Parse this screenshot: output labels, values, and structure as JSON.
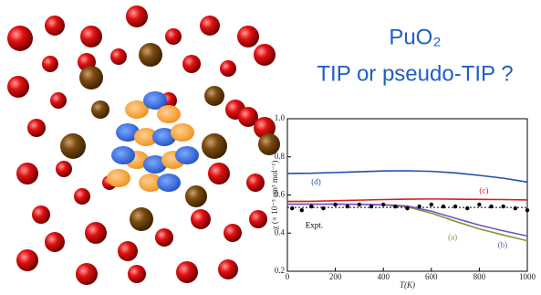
{
  "slide": {
    "title_line1": "PuO₂",
    "title_line2": "TIP or pseudo-TIP ?"
  },
  "chart_data": {
    "type": "line",
    "xlabel": "T(K)",
    "ylabel": "χ (× 10⁻³ cm³ mol⁻¹)",
    "xlim": [
      0,
      1000
    ],
    "xticks": [
      0,
      200,
      400,
      600,
      800,
      1000
    ],
    "ylim": [
      0.2,
      1
    ],
    "yticks": [
      0.2,
      0.4,
      0.6,
      0.8,
      {
        "value": 1,
        "label": "1.0"
      }
    ],
    "series": [
      {
        "name": "(a)",
        "color": "#7a9a3a",
        "x": [
          0,
          100,
          200,
          300,
          400,
          500,
          600,
          700,
          800,
          900,
          1000
        ],
        "values": [
          0.552,
          0.552,
          0.552,
          0.551,
          0.548,
          0.538,
          0.505,
          0.462,
          0.422,
          0.39,
          0.36
        ]
      },
      {
        "name": "(b)",
        "color": "#7b4fc0",
        "x": [
          0,
          100,
          200,
          300,
          400,
          500,
          600,
          700,
          800,
          900,
          1000
        ],
        "values": [
          0.552,
          0.552,
          0.552,
          0.551,
          0.549,
          0.542,
          0.515,
          0.478,
          0.442,
          0.412,
          0.385
        ]
      },
      {
        "name": "(c)",
        "color": "#d42020",
        "x": [
          0,
          100,
          200,
          300,
          400,
          500,
          600,
          700,
          800,
          900,
          1000
        ],
        "values": [
          0.566,
          0.567,
          0.57,
          0.573,
          0.576,
          0.578,
          0.579,
          0.578,
          0.577,
          0.576,
          0.574
        ]
      },
      {
        "name": "(d)",
        "color": "#1f4fb0",
        "x": [
          0,
          100,
          200,
          300,
          400,
          500,
          600,
          700,
          800,
          900,
          1000
        ],
        "values": [
          0.713,
          0.714,
          0.718,
          0.722,
          0.726,
          0.727,
          0.724,
          0.716,
          0.703,
          0.688,
          0.668
        ]
      },
      {
        "name": "Expt.",
        "color": "#000000",
        "x": [
          20,
          60,
          100,
          150,
          200,
          250,
          300,
          350,
          400,
          450,
          500,
          550,
          600,
          650,
          700,
          750,
          800,
          850,
          900,
          950,
          1000
        ],
        "values": [
          0.53,
          0.52,
          0.54,
          0.53,
          0.55,
          0.54,
          0.55,
          0.54,
          0.55,
          0.54,
          0.53,
          0.54,
          0.55,
          0.54,
          0.54,
          0.53,
          0.55,
          0.54,
          0.54,
          0.53,
          0.52
        ]
      }
    ],
    "expt_line": 0.535
  }
}
